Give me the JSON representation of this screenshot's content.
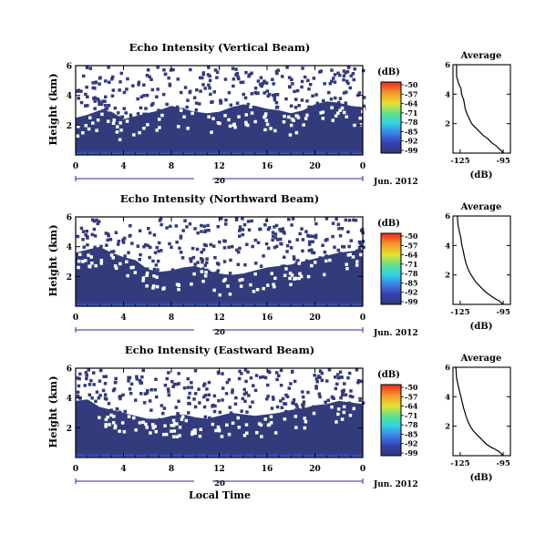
{
  "chart_data": [
    {
      "type": "heatmap",
      "title": "Echo Intensity (Vertical Beam)",
      "ylabel": "Height (km)",
      "xlabel": "",
      "date_label": "20",
      "date_suffix": "Jun. 2012",
      "x_ticks": [
        "0",
        "4",
        "8",
        "12",
        "16",
        "20",
        "0"
      ],
      "y_ticks": [
        "2",
        "4",
        "6"
      ],
      "xlim": [
        0,
        24
      ],
      "ylim": [
        0,
        6
      ],
      "colorbar": {
        "unit": "(dB)",
        "ticks": [
          "-50",
          "-57",
          "-64",
          "-71",
          "-78",
          "-85",
          "-92",
          "-99"
        ]
      },
      "white_ceiling_km": [
        2.5,
        2.7,
        3.0,
        2.9,
        2.4,
        2.6,
        2.8,
        3.0,
        3.3,
        3.1,
        2.9,
        2.8,
        2.9,
        3.2,
        3.4,
        3.3,
        3.1,
        3.0,
        2.8,
        3.0,
        3.4,
        3.6,
        3.5,
        3.3,
        3.2
      ],
      "average_profile": {
        "title": "Average",
        "xlabel": "(dB)",
        "x_ticks": [
          "-125",
          "-95"
        ],
        "y_ticks": [
          "2",
          "4",
          "6"
        ],
        "xlim": [
          -130,
          -90
        ],
        "ylim": [
          0,
          6
        ],
        "x": [
          -127.5,
          -127.5,
          -126,
          -124.5,
          -124,
          -122.5,
          -121.5,
          -120,
          -118.5,
          -117,
          -115,
          -112,
          -109,
          -106,
          -103,
          -100,
          -98,
          -96,
          -95.5
        ],
        "y": [
          6.0,
          5.2,
          4.7,
          4.4,
          4.0,
          3.6,
          3.0,
          2.6,
          2.3,
          2.0,
          1.8,
          1.5,
          1.2,
          1.0,
          0.7,
          0.5,
          0.3,
          0.15,
          0.0
        ]
      }
    },
    {
      "type": "heatmap",
      "title": "Echo Intensity (Northward Beam)",
      "ylabel": "Height (km)",
      "xlabel": "",
      "date_label": "20",
      "date_suffix": "Jun. 2012",
      "x_ticks": [
        "0",
        "4",
        "8",
        "12",
        "16",
        "20",
        "0"
      ],
      "y_ticks": [
        "2",
        "4",
        "6"
      ],
      "xlim": [
        0,
        24
      ],
      "ylim": [
        0,
        6
      ],
      "colorbar": {
        "unit": "(dB)",
        "ticks": [
          "-50",
          "-57",
          "-64",
          "-71",
          "-78",
          "-85",
          "-92",
          "-99"
        ]
      },
      "white_ceiling_km": [
        3.6,
        3.8,
        4.0,
        3.6,
        3.3,
        3.1,
        2.5,
        2.3,
        2.4,
        2.6,
        2.7,
        2.4,
        2.2,
        2.1,
        2.2,
        2.4,
        2.6,
        2.7,
        2.8,
        3.0,
        3.2,
        3.4,
        3.6,
        3.7,
        3.8
      ],
      "average_profile": {
        "title": "Average",
        "xlabel": "(dB)",
        "x_ticks": [
          "-125",
          "-95"
        ],
        "y_ticks": [
          "2",
          "4",
          "6"
        ],
        "xlim": [
          -130,
          -90
        ],
        "ylim": [
          0,
          6
        ],
        "x": [
          -127,
          -126.5,
          -125.5,
          -124.5,
          -124,
          -123,
          -122,
          -121,
          -119.5,
          -118,
          -116,
          -114,
          -111,
          -108,
          -104,
          -101,
          -98,
          -96,
          -95.5
        ],
        "y": [
          6.0,
          5.4,
          4.9,
          4.5,
          4.1,
          3.7,
          3.2,
          2.8,
          2.4,
          2.1,
          1.8,
          1.5,
          1.2,
          0.9,
          0.6,
          0.4,
          0.25,
          0.1,
          0.0
        ]
      }
    },
    {
      "type": "heatmap",
      "title": "Echo Intensity (Eastward Beam)",
      "ylabel": "Height (km)",
      "xlabel": "Local Time",
      "date_label": "20",
      "date_suffix": "Jun. 2012",
      "x_ticks": [
        "0",
        "4",
        "8",
        "12",
        "16",
        "20",
        "0"
      ],
      "y_ticks": [
        "2",
        "4",
        "6"
      ],
      "xlim": [
        0,
        24
      ],
      "ylim": [
        0,
        6
      ],
      "colorbar": {
        "unit": "(dB)",
        "ticks": [
          "-50",
          "-57",
          "-64",
          "-71",
          "-78",
          "-85",
          "-92",
          "-99"
        ]
      },
      "white_ceiling_km": [
        3.8,
        3.9,
        3.4,
        3.2,
        3.0,
        2.8,
        2.6,
        2.6,
        2.8,
        2.9,
        2.7,
        2.6,
        2.8,
        3.0,
        2.9,
        2.8,
        2.9,
        3.0,
        3.2,
        3.3,
        3.5,
        3.6,
        3.8,
        3.7,
        3.6
      ],
      "average_profile": {
        "title": "Average",
        "xlabel": "(dB)",
        "x_ticks": [
          "-125",
          "-95"
        ],
        "y_ticks": [
          "2",
          "4",
          "6"
        ],
        "xlim": [
          -130,
          -90
        ],
        "ylim": [
          0,
          6
        ],
        "x": [
          -128,
          -127.5,
          -126.5,
          -125.5,
          -124.5,
          -123.5,
          -122.5,
          -121,
          -119.5,
          -118,
          -116,
          -113,
          -110,
          -107,
          -104,
          -100,
          -97.5,
          -96,
          -95.5
        ],
        "y": [
          6.0,
          5.3,
          4.8,
          4.4,
          4.0,
          3.6,
          3.2,
          2.7,
          2.3,
          2.0,
          1.7,
          1.4,
          1.1,
          0.8,
          0.6,
          0.4,
          0.25,
          0.1,
          0.0
        ]
      }
    }
  ]
}
